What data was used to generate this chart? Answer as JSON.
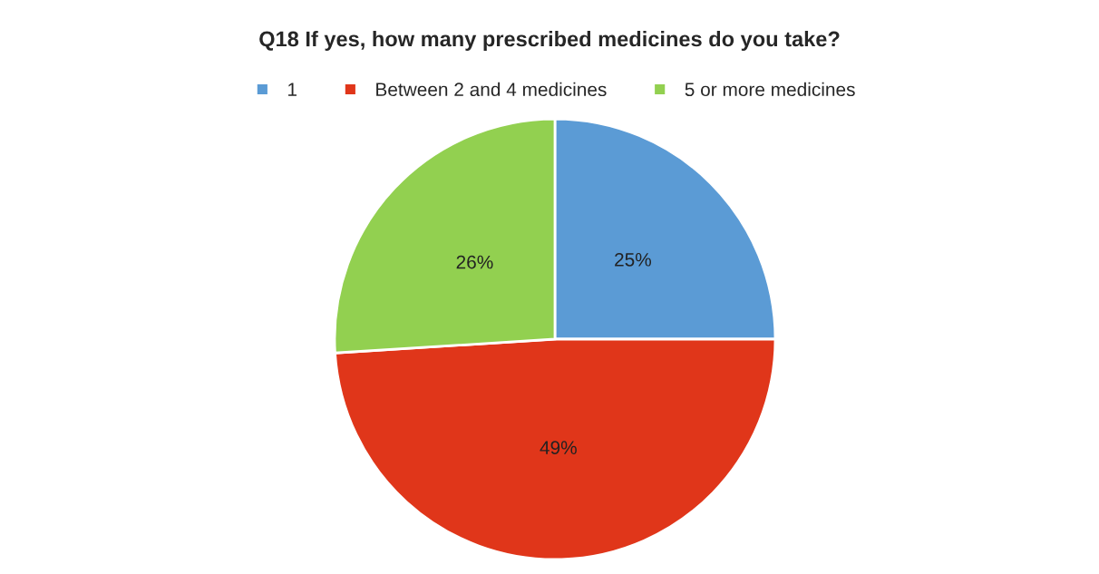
{
  "chart_data": {
    "type": "pie",
    "title": "Q18 If yes, how many prescribed medicines do you take?",
    "categories": [
      "1",
      "Between 2 and 4 medicines",
      "5 or more medicines"
    ],
    "values": [
      25,
      49,
      26
    ],
    "colors": [
      "#5b9bd5",
      "#e0361a",
      "#92d050"
    ],
    "value_labels": [
      "25%",
      "49%",
      "26%"
    ],
    "legend": "top"
  }
}
